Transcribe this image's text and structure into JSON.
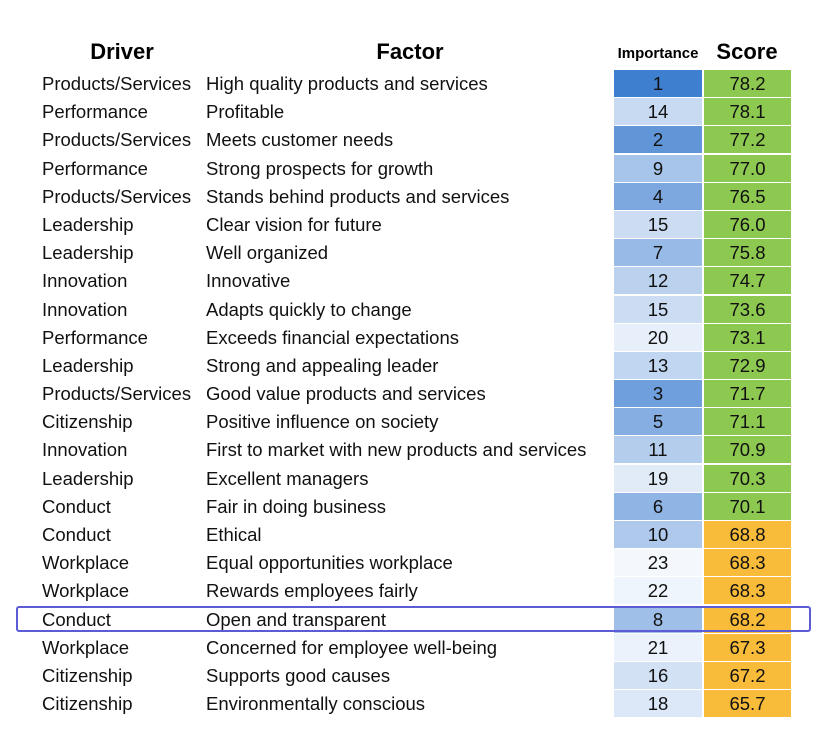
{
  "headers": {
    "driver": "Driver",
    "factor": "Factor",
    "importance": "Importance",
    "score": "Score"
  },
  "colors": {
    "score_green": "#8dc850",
    "score_orange": "#f8bb3a",
    "importance_dark": "#3f7fd0",
    "importance_light": "#f4f8fd",
    "highlight_border": "#5b5bd6"
  },
  "highlighted_factor": "Open and transparent",
  "chart_data": {
    "type": "table",
    "columns": [
      "Driver",
      "Factor",
      "Importance",
      "Score"
    ],
    "rows": [
      {
        "driver": "Products/Services",
        "factor": "High quality products and services",
        "importance": 1,
        "score": "78.2",
        "score_band": "green"
      },
      {
        "driver": "Performance",
        "factor": "Profitable",
        "importance": 14,
        "score": "78.1",
        "score_band": "green"
      },
      {
        "driver": "Products/Services",
        "factor": "Meets customer needs",
        "importance": 2,
        "score": "77.2",
        "score_band": "green"
      },
      {
        "driver": "Performance",
        "factor": "Strong prospects for growth",
        "importance": 9,
        "score": "77.0",
        "score_band": "green"
      },
      {
        "driver": "Products/Services",
        "factor": "Stands behind products and services",
        "importance": 4,
        "score": "76.5",
        "score_band": "green"
      },
      {
        "driver": "Leadership",
        "factor": "Clear vision for future",
        "importance": 15,
        "score": "76.0",
        "score_band": "green"
      },
      {
        "driver": "Leadership",
        "factor": "Well organized",
        "importance": 7,
        "score": "75.8",
        "score_band": "green"
      },
      {
        "driver": "Innovation",
        "factor": "Innovative",
        "importance": 12,
        "score": "74.7",
        "score_band": "green"
      },
      {
        "driver": "Innovation",
        "factor": "Adapts quickly to change",
        "importance": 15,
        "score": "73.6",
        "score_band": "green"
      },
      {
        "driver": "Performance",
        "factor": "Exceeds financial expectations",
        "importance": 20,
        "score": "73.1",
        "score_band": "green"
      },
      {
        "driver": "Leadership",
        "factor": "Strong and appealing leader",
        "importance": 13,
        "score": "72.9",
        "score_band": "green"
      },
      {
        "driver": "Products/Services",
        "factor": "Good value products and services",
        "importance": 3,
        "score": "71.7",
        "score_band": "green"
      },
      {
        "driver": "Citizenship",
        "factor": "Positive influence on society",
        "importance": 5,
        "score": "71.1",
        "score_band": "green"
      },
      {
        "driver": "Innovation",
        "factor": "First to market with new products and services",
        "importance": 11,
        "score": "70.9",
        "score_band": "green"
      },
      {
        "driver": "Leadership",
        "factor": "Excellent managers",
        "importance": 19,
        "score": "70.3",
        "score_band": "green"
      },
      {
        "driver": "Conduct",
        "factor": "Fair in doing business",
        "importance": 6,
        "score": "70.1",
        "score_band": "green"
      },
      {
        "driver": "Conduct",
        "factor": "Ethical",
        "importance": 10,
        "score": "68.8",
        "score_band": "orange"
      },
      {
        "driver": "Workplace",
        "factor": "Equal opportunities workplace",
        "importance": 23,
        "score": "68.3",
        "score_band": "orange"
      },
      {
        "driver": "Workplace",
        "factor": "Rewards employees fairly",
        "importance": 22,
        "score": "68.3",
        "score_band": "orange"
      },
      {
        "driver": "Conduct",
        "factor": "Open and transparent",
        "importance": 8,
        "score": "68.2",
        "score_band": "orange"
      },
      {
        "driver": "Workplace",
        "factor": "Concerned for employee well-being",
        "importance": 21,
        "score": "67.3",
        "score_band": "orange"
      },
      {
        "driver": "Citizenship",
        "factor": "Supports good causes",
        "importance": 16,
        "score": "67.2",
        "score_band": "orange"
      },
      {
        "driver": "Citizenship",
        "factor": "Environmentally conscious",
        "importance": 18,
        "score": "65.7",
        "score_band": "orange"
      }
    ]
  }
}
